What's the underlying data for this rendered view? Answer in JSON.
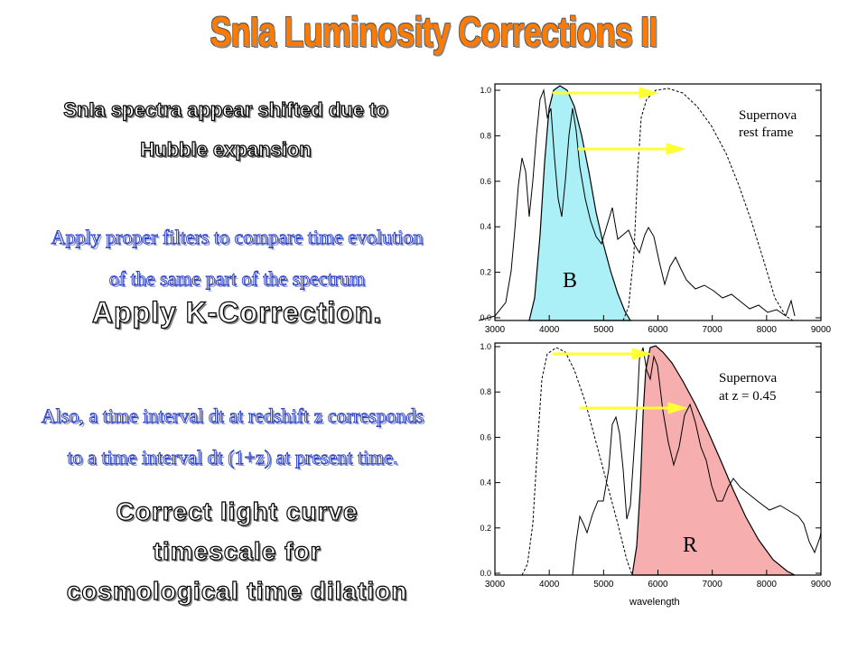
{
  "title": "SnIa Luminosity Corrections II",
  "left": {
    "hubble_line1": "SnIa spectra appear shifted due to",
    "hubble_line2": "Hubble expansion",
    "filters_line1": "Apply proper filters to compare time evolution",
    "filters_line2": "of the same part of the spectrum",
    "kcorr": "Apply K-Correction.",
    "dilation_line1": "Also, a time interval dt at redshift z corresponds",
    "dilation_line2": "to a time interval dt (1+z) at present time.",
    "correct_line1": "Correct light curve",
    "correct_line2": "timescale for",
    "correct_line3": "cosmological time dilation"
  },
  "plots": {
    "top_label1": "Supernova",
    "top_label2": "rest frame",
    "bottom_label1": "Supernova",
    "bottom_label2": "at z = 0.45",
    "filter_top": "B",
    "filter_bottom": "R",
    "xlabel": "wavelength",
    "x_ticks": [
      "3000",
      "4000",
      "5000",
      "6000",
      "7000",
      "8000",
      "9000"
    ],
    "y_ticks": [
      "0.0",
      "0.2",
      "0.4",
      "0.6",
      "0.8",
      "1.0"
    ],
    "colors": {
      "B_fill": "#aaf0f6",
      "R_fill": "#f7aeae",
      "arrow": "#ffff33"
    }
  }
}
